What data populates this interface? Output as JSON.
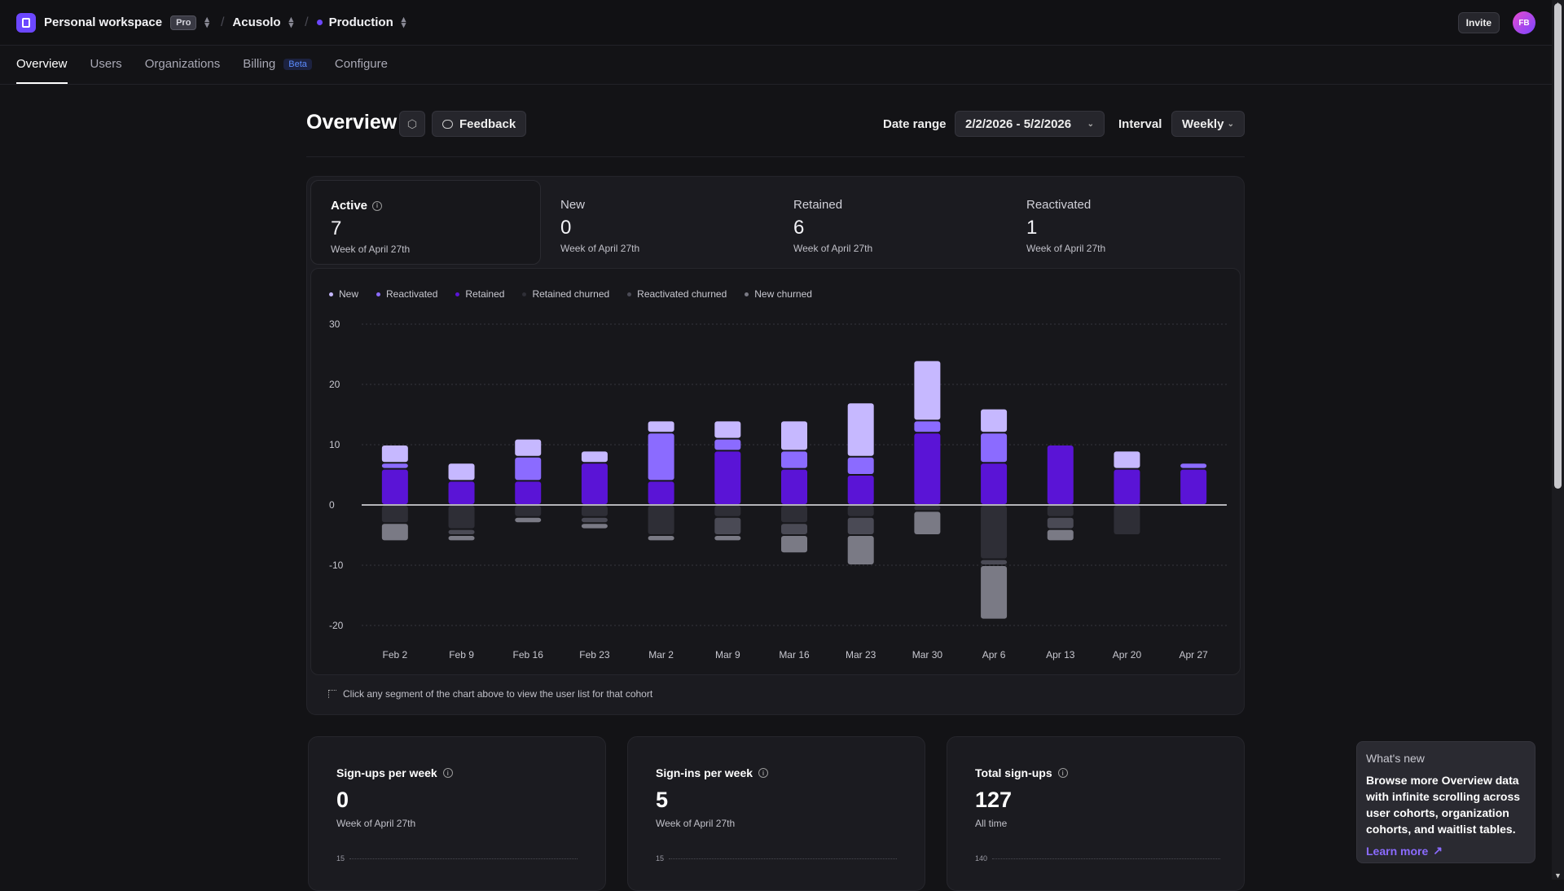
{
  "topbar": {
    "workspace": "Personal workspace",
    "plan_badge": "Pro",
    "app": "Acusolo",
    "environment": "Production",
    "invite_label": "Invite",
    "avatar_initials": "FB"
  },
  "tabs": [
    {
      "label": "Overview",
      "active": true
    },
    {
      "label": "Users"
    },
    {
      "label": "Organizations"
    },
    {
      "label": "Billing",
      "badge": "Beta"
    },
    {
      "label": "Configure"
    }
  ],
  "header": {
    "title": "Overview",
    "feedback_label": "Feedback",
    "date_range_label": "Date range",
    "date_range_value": "2/2/2026 - 5/2/2026",
    "interval_label": "Interval",
    "interval_value": "Weekly"
  },
  "stats": [
    {
      "label": "Active",
      "value": "7",
      "sub": "Week of April 27th",
      "active": true
    },
    {
      "label": "New",
      "value": "0",
      "sub": "Week of April 27th"
    },
    {
      "label": "Retained",
      "value": "6",
      "sub": "Week of April 27th"
    },
    {
      "label": "Reactivated",
      "value": "1",
      "sub": "Week of April 27th"
    }
  ],
  "legend": [
    {
      "label": "New",
      "color": "#c6b8ff"
    },
    {
      "label": "Reactivated",
      "color": "#8b6bff"
    },
    {
      "label": "Retained",
      "color": "#5a14d6"
    },
    {
      "label": "Retained churned",
      "color": "#2e2e36"
    },
    {
      "label": "Reactivated churned",
      "color": "#4a4a55"
    },
    {
      "label": "New churned",
      "color": "#7a7a85"
    }
  ],
  "chart_data": {
    "type": "bar",
    "stacked": true,
    "categories": [
      "Feb 2",
      "Feb 9",
      "Feb 16",
      "Feb 23",
      "Mar 2",
      "Mar 9",
      "Mar 16",
      "Mar 23",
      "Mar 30",
      "Apr 6",
      "Apr 13",
      "Apr 20",
      "Apr 27"
    ],
    "y_ticks": [
      30,
      20,
      10,
      0,
      -10,
      -20
    ],
    "ylim": [
      -20,
      30
    ],
    "grid": true,
    "series": [
      {
        "name": "Retained",
        "values": [
          6,
          4,
          4,
          7,
          4,
          9,
          6,
          5,
          12,
          7,
          10,
          6,
          6
        ]
      },
      {
        "name": "Reactivated",
        "values": [
          1,
          0,
          4,
          0,
          8,
          2,
          3,
          3,
          2,
          5,
          0,
          0,
          1
        ]
      },
      {
        "name": "New",
        "values": [
          3,
          3,
          3,
          2,
          2,
          3,
          5,
          9,
          10,
          4,
          0,
          3,
          0
        ]
      },
      {
        "name": "Retained churned",
        "values": [
          -3,
          -4,
          -2,
          -2,
          -5,
          -2,
          -3,
          -2,
          -1,
          -9,
          -2,
          -5,
          0
        ]
      },
      {
        "name": "Reactivated churned",
        "values": [
          0,
          -1,
          0,
          -1,
          0,
          -3,
          -2,
          -3,
          0,
          -1,
          -2,
          0,
          0
        ]
      },
      {
        "name": "New churned",
        "values": [
          -3,
          -1,
          -1,
          -1,
          -1,
          -1,
          -3,
          -5,
          -4,
          -9,
          -2,
          0,
          0
        ]
      }
    ]
  },
  "chart_hint": "Click any segment of the chart above to view the user list for that cohort",
  "cards": [
    {
      "title": "Sign-ups per week",
      "value": "0",
      "sub": "Week of April 27th",
      "axis_tick": "15"
    },
    {
      "title": "Sign-ins per week",
      "value": "5",
      "sub": "Week of April 27th",
      "axis_tick": "15"
    },
    {
      "title": "Total sign-ups",
      "value": "127",
      "sub": "All time",
      "axis_tick": "140"
    }
  ],
  "whats_new": {
    "title": "What's new",
    "body": "Browse more Overview data with infinite scrolling across user cohorts, organization cohorts, and waitlist tables.",
    "link": "Learn more"
  }
}
